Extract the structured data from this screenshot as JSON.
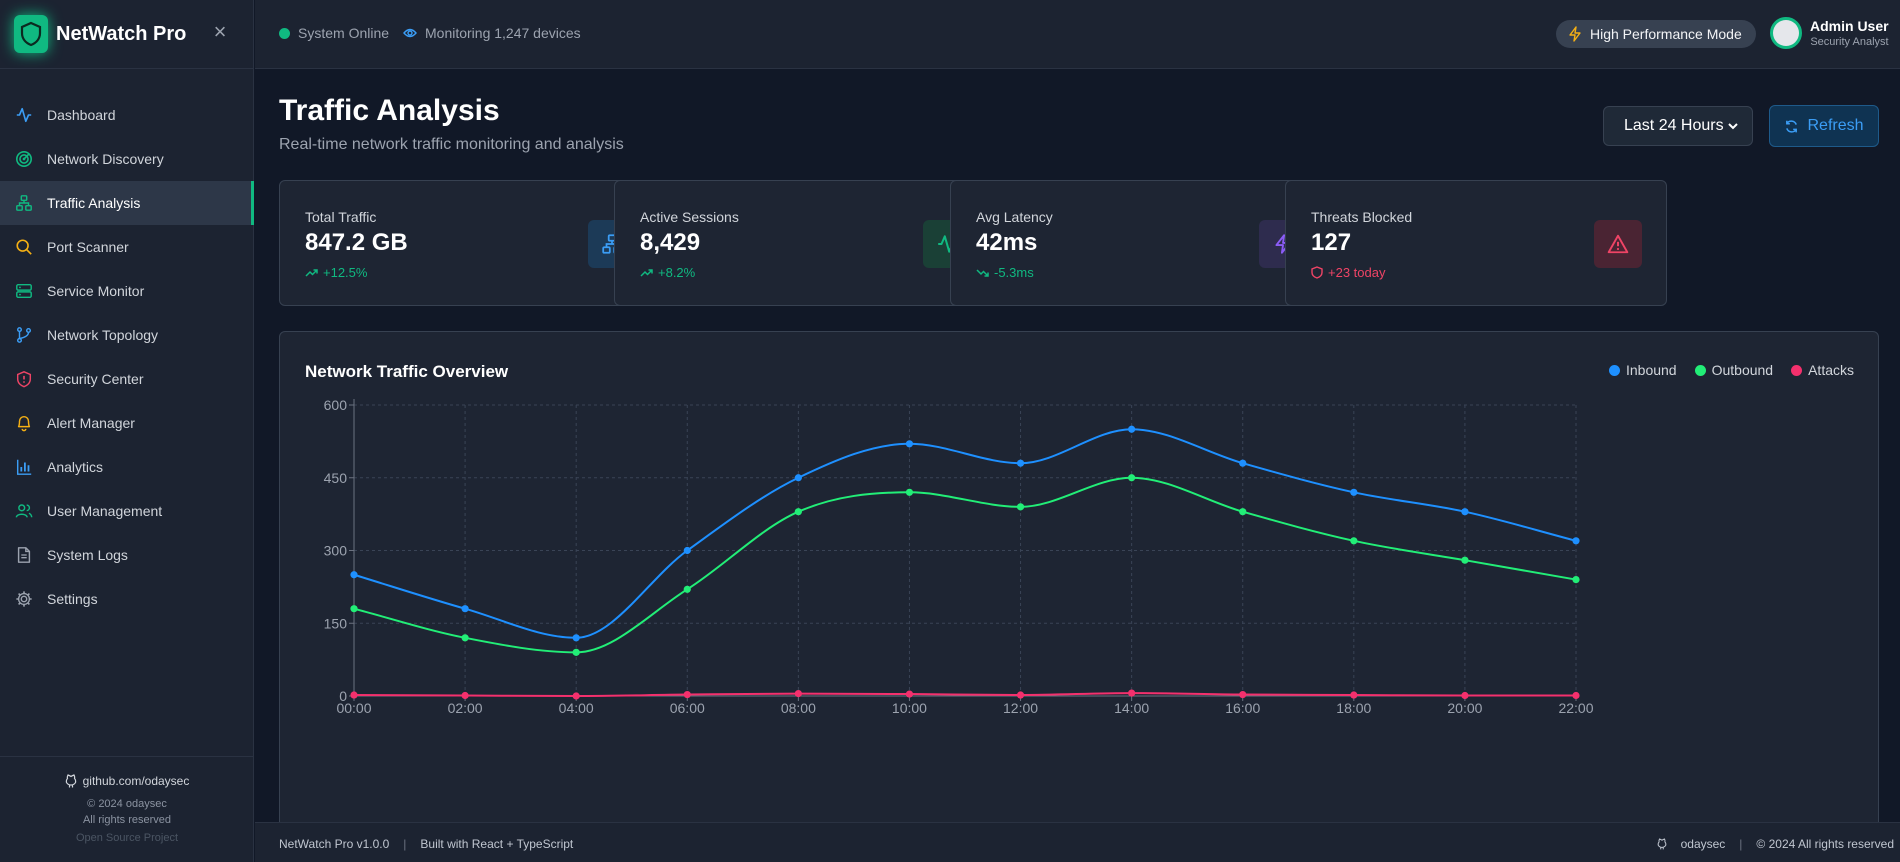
{
  "brand": {
    "name": "NetWatch Pro"
  },
  "sidebar": {
    "items": [
      {
        "label": "Dashboard",
        "icon": "activity-icon",
        "color": "#3b9df5",
        "active": false
      },
      {
        "label": "Network Discovery",
        "icon": "radar-icon",
        "color": "#10b981",
        "active": false
      },
      {
        "label": "Traffic Analysis",
        "icon": "network-icon",
        "color": "#10b981",
        "active": true
      },
      {
        "label": "Port Scanner",
        "icon": "search-icon",
        "color": "#f5b014",
        "active": false
      },
      {
        "label": "Service Monitor",
        "icon": "server-icon",
        "color": "#10b981",
        "active": false
      },
      {
        "label": "Network Topology",
        "icon": "git-branch-icon",
        "color": "#3b9df5",
        "active": false
      },
      {
        "label": "Security Center",
        "icon": "shield-alert-icon",
        "color": "#ef4466",
        "active": false
      },
      {
        "label": "Alert Manager",
        "icon": "bell-icon",
        "color": "#f5b014",
        "active": false
      },
      {
        "label": "Analytics",
        "icon": "bar-chart-icon",
        "color": "#3b9df5",
        "active": false
      },
      {
        "label": "User Management",
        "icon": "users-icon",
        "color": "#10b981",
        "active": false
      },
      {
        "label": "System Logs",
        "icon": "file-text-icon",
        "color": "#9ca3af",
        "active": false
      },
      {
        "label": "Settings",
        "icon": "gear-icon",
        "color": "#9ca3af",
        "active": false
      }
    ],
    "footer": {
      "github": "github.com/odaysec",
      "copyright": "© 2024 odaysec",
      "rights": "All rights reserved",
      "open_source": "Open Source Project"
    }
  },
  "topbar": {
    "status": "System Online",
    "monitoring": "Monitoring 1,247 devices",
    "performance_mode": "High Performance Mode",
    "user_name": "Admin User",
    "user_role": "Security Analyst"
  },
  "page": {
    "title": "Traffic Analysis",
    "subtitle": "Real-time network traffic monitoring and analysis",
    "range": "Last 24 Hours",
    "refresh": "Refresh"
  },
  "stats": [
    {
      "label": "Total Traffic",
      "value": "847.2 GB",
      "change": "+12.5%",
      "trend": "up",
      "color": "#10b981",
      "icon": "network-icon",
      "icon_color": "#3b9df5",
      "icon_bg": "#1c3a57"
    },
    {
      "label": "Active Sessions",
      "value": "8,429",
      "change": "+8.2%",
      "trend": "up",
      "color": "#10b981",
      "icon": "activity-icon",
      "icon_color": "#10b981",
      "icon_bg": "#1a4036"
    },
    {
      "label": "Avg Latency",
      "value": "42ms",
      "change": "-5.3ms",
      "trend": "down",
      "color": "#10b981",
      "icon": "zap-icon",
      "icon_color": "#8b5cf6",
      "icon_bg": "#2e2c4e"
    },
    {
      "label": "Threats Blocked",
      "value": "127",
      "change": "+23 today",
      "trend": "shield",
      "color": "#ef4466",
      "icon": "alert-triangle-icon",
      "icon_color": "#ef4466",
      "icon_bg": "#4a2433"
    }
  ],
  "chart_data": {
    "type": "line",
    "title": "Network Traffic Overview",
    "categories": [
      "00:00",
      "02:00",
      "04:00",
      "06:00",
      "08:00",
      "10:00",
      "12:00",
      "14:00",
      "16:00",
      "18:00",
      "20:00",
      "22:00"
    ],
    "ylim": [
      0,
      600
    ],
    "yticks": [
      0,
      150,
      300,
      450,
      600
    ],
    "grid": true,
    "legend_position": "top-right",
    "series": [
      {
        "name": "Inbound",
        "color": "#1e90ff",
        "values": [
          250,
          180,
          120,
          300,
          450,
          520,
          480,
          550,
          480,
          420,
          380,
          320
        ]
      },
      {
        "name": "Outbound",
        "color": "#22ee77",
        "values": [
          180,
          120,
          90,
          220,
          380,
          420,
          390,
          450,
          380,
          320,
          280,
          240
        ]
      },
      {
        "name": "Attacks",
        "color": "#f4306d",
        "values": [
          2,
          1,
          0,
          3,
          5,
          4,
          2,
          6,
          3,
          2,
          1,
          1
        ]
      }
    ]
  },
  "footer": {
    "version": "NetWatch Pro v1.0.0",
    "built": "Built with React + TypeScript",
    "author": "odaysec",
    "copyright": "© 2024 All rights reserved"
  }
}
